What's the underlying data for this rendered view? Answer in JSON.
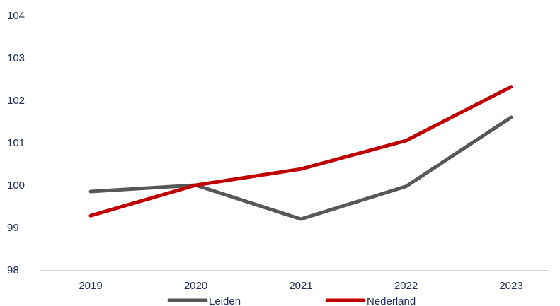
{
  "chart_data": {
    "type": "line",
    "title": "",
    "xlabel": "",
    "ylabel": "",
    "x": [
      "2019",
      "2020",
      "2021",
      "2022",
      "2023"
    ],
    "ylim": [
      98,
      104
    ],
    "yticks": [
      "98",
      "99",
      "100",
      "101",
      "102",
      "103",
      "104"
    ],
    "grid": false,
    "legend_position": "bottom",
    "series": [
      {
        "name": "Leiden",
        "color": "#575757",
        "values": [
          99.85,
          100.0,
          99.2,
          99.97,
          101.6
        ]
      },
      {
        "name": "Nederland",
        "color": "#c00000",
        "values": [
          99.28,
          100.0,
          100.38,
          101.05,
          102.32
        ]
      }
    ]
  }
}
